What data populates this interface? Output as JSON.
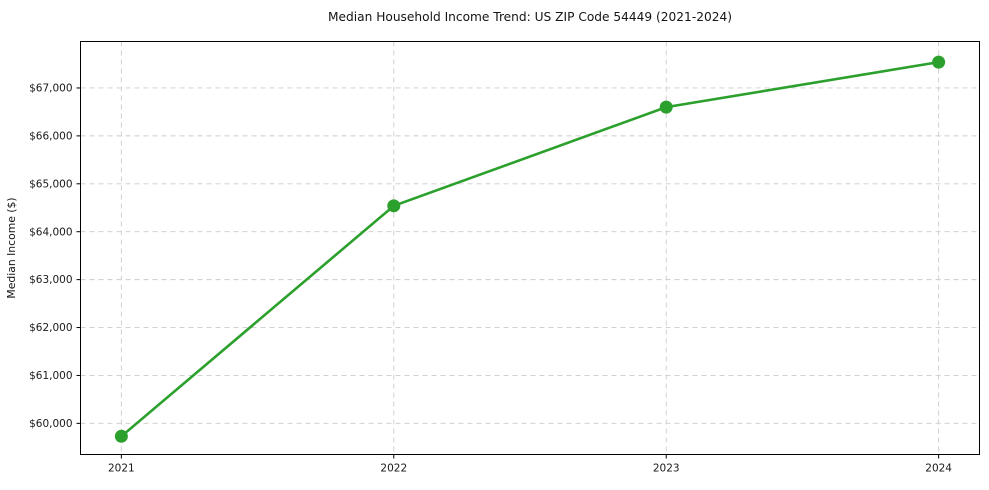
{
  "chart_data": {
    "type": "line",
    "title": "Median Household Income Trend: US ZIP Code 54449 (2021-2024)",
    "xlabel": "",
    "ylabel": "Median Income ($)",
    "x": [
      2021,
      2022,
      2023,
      2024
    ],
    "x_tick_labels": [
      "2021",
      "2022",
      "2023",
      "2024"
    ],
    "values": [
      59730,
      64540,
      66600,
      67540
    ],
    "y_ticks": [
      60000,
      61000,
      62000,
      63000,
      64000,
      65000,
      66000,
      67000
    ],
    "y_tick_labels": [
      "$60,000",
      "$61,000",
      "$62,000",
      "$63,000",
      "$64,000",
      "$65,000",
      "$66,000",
      "$67,000"
    ],
    "xlim": [
      2020.85,
      2024.15
    ],
    "ylim": [
      59350,
      67970
    ],
    "grid": true,
    "grid_style": "dashed",
    "legend_position": "none",
    "line_color": "#2ca02c",
    "marker": "circle",
    "marker_color": "#2ca02c",
    "grid_color": "#cccccc",
    "spine_color": "#000000",
    "tick_color": "#000000",
    "background_color": "#ffffff"
  }
}
